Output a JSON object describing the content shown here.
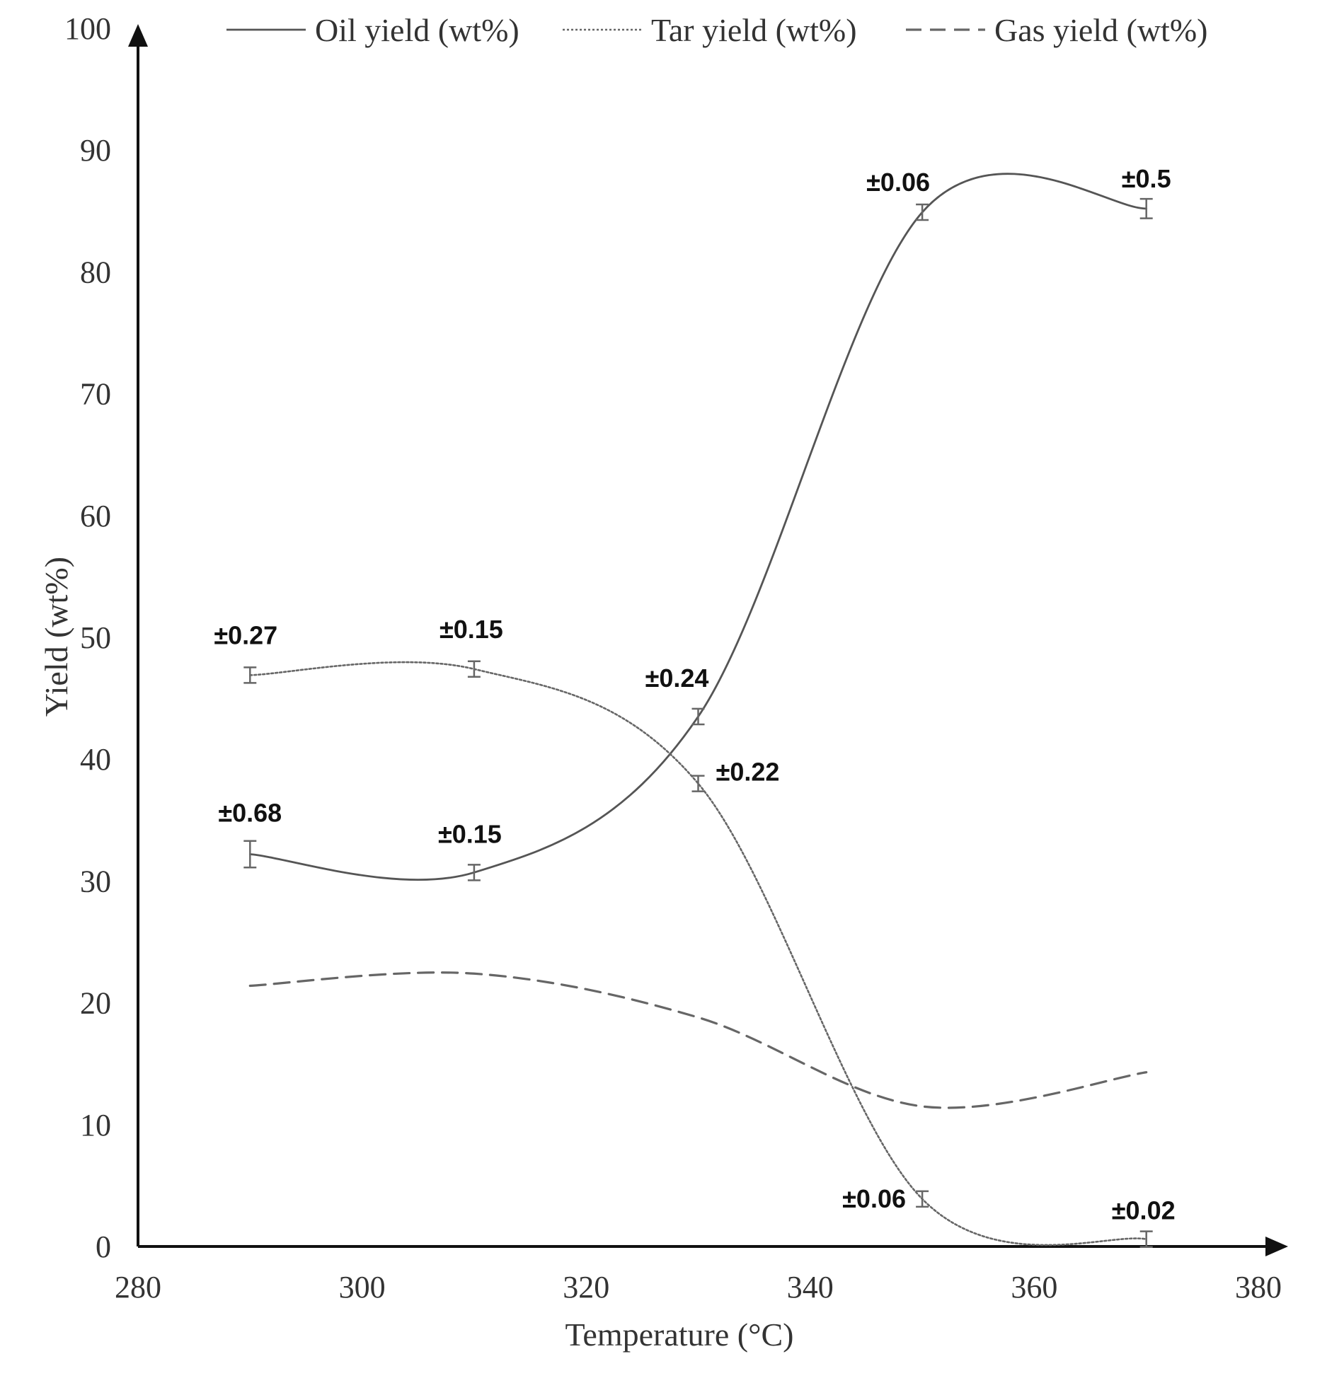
{
  "chart_data": {
    "type": "line",
    "title": "",
    "xlabel": "Temperature (°C)",
    "ylabel": "Yield (wt%)",
    "xlim": [
      280,
      380
    ],
    "ylim": [
      0,
      100
    ],
    "x_ticks": [
      280,
      300,
      320,
      340,
      360,
      380
    ],
    "y_ticks": [
      0,
      10,
      20,
      30,
      40,
      50,
      60,
      70,
      80,
      90,
      100
    ],
    "x_tick_labels": [
      "280",
      "300",
      "320",
      "340",
      "360",
      "380"
    ],
    "y_tick_labels": [
      "0",
      "10",
      "20",
      "30",
      "40",
      "50",
      "60",
      "70",
      "80",
      "90",
      "100"
    ],
    "grid": false,
    "legend_position": "top",
    "series": [
      {
        "key": "oil",
        "name": "Oil yield (wt%)",
        "style": "solid",
        "x": [
          290,
          310,
          330,
          350,
          370
        ],
        "values": [
          32.2,
          30.7,
          43.5,
          84.9,
          85.2
        ],
        "errors": [
          0.68,
          0.15,
          0.24,
          0.06,
          0.5
        ],
        "error_labels": [
          "±0.68",
          "±0.15",
          "±0.24",
          "±0.06",
          "±0.5"
        ]
      },
      {
        "key": "tar",
        "name": "Tar yield (wt%)",
        "style": "dotted",
        "x": [
          290,
          310,
          330,
          350,
          370
        ],
        "values": [
          46.9,
          47.4,
          38.0,
          3.9,
          0.6
        ],
        "errors": [
          0.27,
          0.15,
          0.22,
          0.06,
          0.02
        ],
        "error_labels": [
          "±0.27",
          "±0.15",
          "±0.22",
          "±0.06",
          "±0.02"
        ]
      },
      {
        "key": "gas",
        "name": "Gas yield (wt%)",
        "style": "dashed",
        "x": [
          290,
          310,
          330,
          350,
          370
        ],
        "values": [
          21.4,
          22.4,
          18.8,
          11.5,
          14.3
        ]
      }
    ]
  },
  "colors": {
    "axis": "#111111",
    "oil": "#555555",
    "tar": "#666666",
    "gas": "#666666",
    "errorbar": "#666666"
  }
}
